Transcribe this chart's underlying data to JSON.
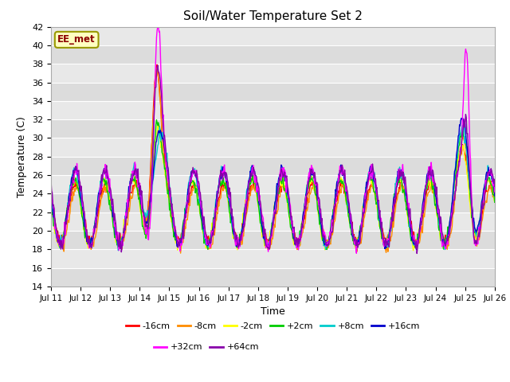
{
  "title": "Soil/Water Temperature Set 2",
  "xlabel": "Time",
  "ylabel": "Temperature (C)",
  "ylim": [
    14,
    42
  ],
  "yticks": [
    14,
    16,
    18,
    20,
    22,
    24,
    26,
    28,
    30,
    32,
    34,
    36,
    38,
    40,
    42
  ],
  "xtick_labels": [
    "Jul 11",
    "Jul 12",
    "Jul 13",
    "Jul 14",
    "Jul 15",
    "Jul 16",
    "Jul 17",
    "Jul 18",
    "Jul 19",
    "Jul 20",
    "Jul 21",
    "Jul 22",
    "Jul 23",
    "Jul 24",
    "Jul 25",
    "Jul 26"
  ],
  "series_colors": {
    "-16cm": "#FF0000",
    "-8cm": "#FF8C00",
    "-2cm": "#FFFF00",
    "+2cm": "#00CC00",
    "+8cm": "#00CCCC",
    "+16cm": "#0000CC",
    "+32cm": "#FF00FF",
    "+64cm": "#8800AA"
  },
  "station_label": "EE_met",
  "plot_bg_color": "#DCDCDC",
  "band_color_light": "#E8E8E8",
  "band_color_dark": "#D0D0D0"
}
